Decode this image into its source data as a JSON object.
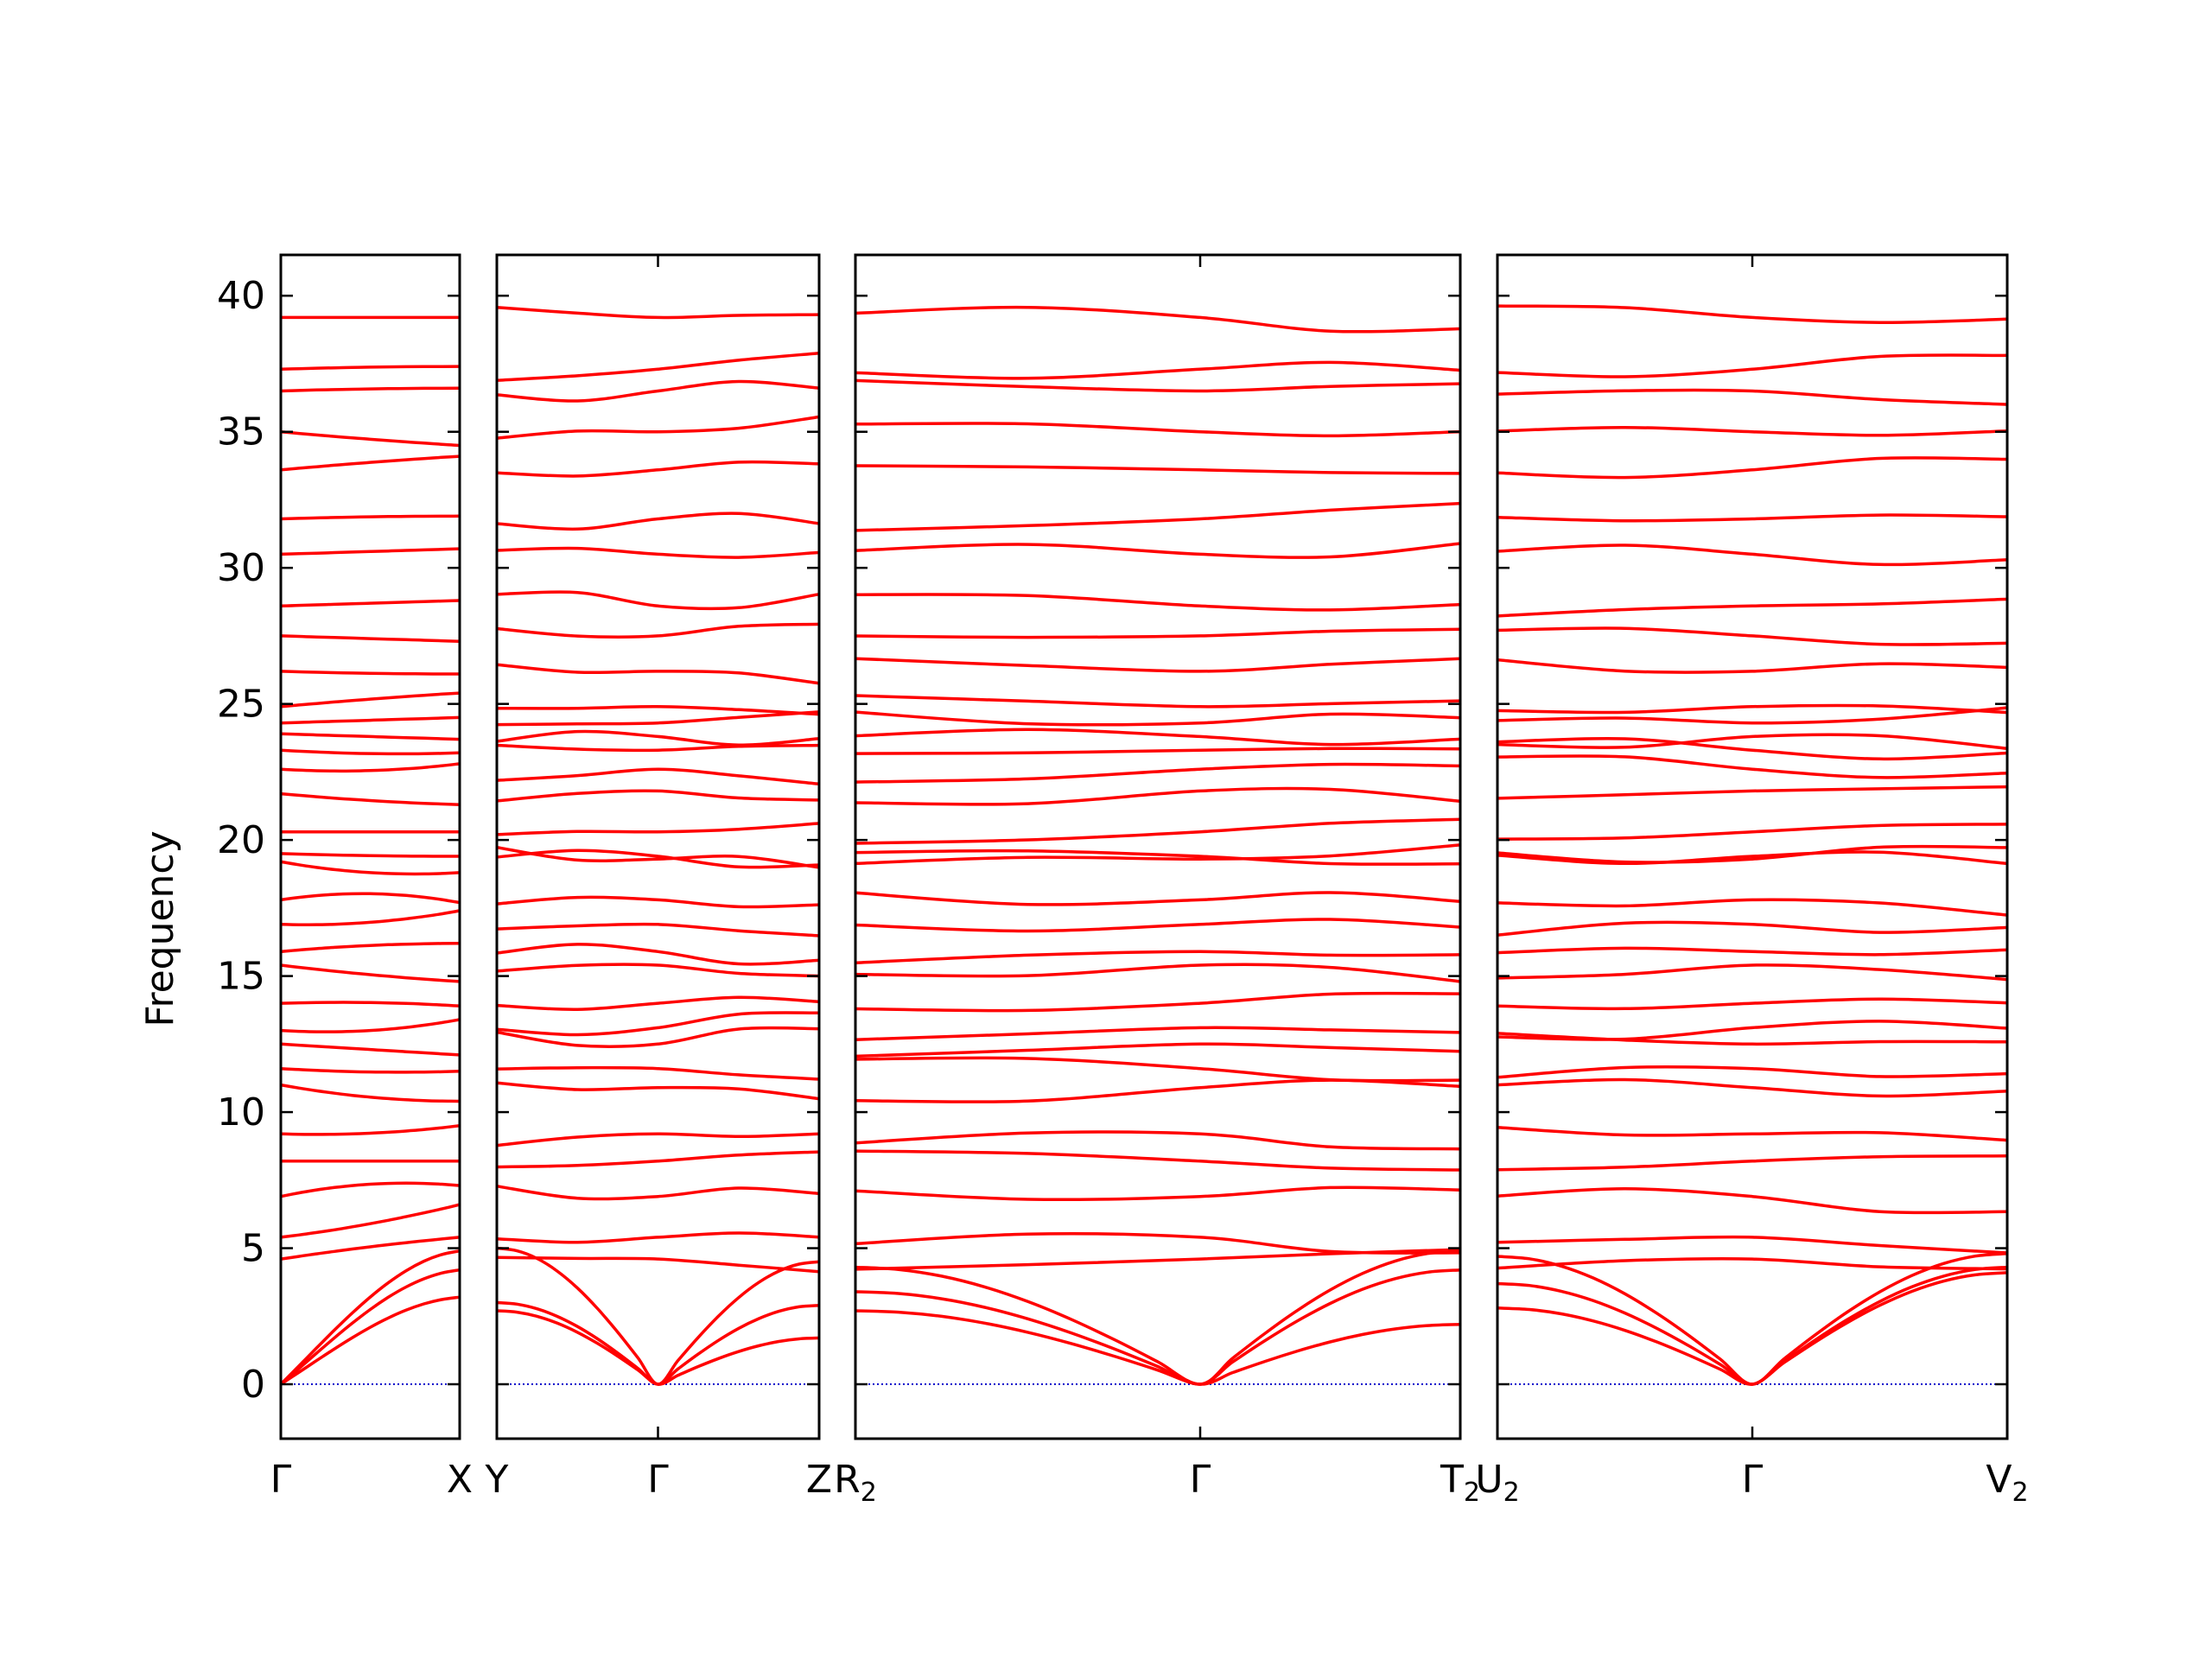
{
  "chart_data": {
    "type": "line",
    "ylabel": "Frequency",
    "ylim": [
      -2,
      41.5
    ],
    "yticks": [
      0,
      5,
      10,
      15,
      20,
      25,
      30,
      35,
      40
    ],
    "band_color": "#ff0000",
    "zero_line_color": "#0000cc",
    "panels": [
      {
        "segments": [
          {
            "k_labels": [
              [
                "Γ",
                ""
              ],
              [
                "X",
                ""
              ]
            ]
          }
        ],
        "gamma_positions": [
          0
        ],
        "endpoint_bands": [
          {
            "start": 0,
            "end": 3.2,
            "mid": 2.2
          },
          {
            "start": 0,
            "end": 4.2,
            "mid": 2.8
          },
          {
            "start": 0,
            "end": 4.9,
            "mid": 4.0
          },
          {
            "start": 4.6,
            "end": 5.4,
            "mid": 5.1
          },
          {
            "start": 5.4,
            "end": 6.6,
            "mid": 5.8
          },
          {
            "start": 6.9,
            "end": 7.3,
            "mid": 7.6
          },
          {
            "start": 8.2,
            "end": 8.2,
            "mid": 8.2
          },
          {
            "start": 9.2,
            "end": 9.5,
            "mid": 9.1
          },
          {
            "start": 11.0,
            "end": 10.4,
            "mid": 10.4
          },
          {
            "start": 11.6,
            "end": 11.5,
            "mid": 11.4
          },
          {
            "start": 12.5,
            "end": 12.1,
            "mid": 12.3
          },
          {
            "start": 13.0,
            "end": 13.4,
            "mid": 12.8
          },
          {
            "start": 14.0,
            "end": 13.9,
            "mid": 14.1
          },
          {
            "start": 15.4,
            "end": 14.8,
            "mid": 15.0
          },
          {
            "start": 15.9,
            "end": 16.2,
            "mid": 16.2
          },
          {
            "start": 16.9,
            "end": 17.4,
            "mid": 16.8
          },
          {
            "start": 17.8,
            "end": 17.7,
            "mid": 18.3
          },
          {
            "start": 19.2,
            "end": 18.8,
            "mid": 18.6
          },
          {
            "start": 19.5,
            "end": 19.4,
            "mid": 19.4
          },
          {
            "start": 20.3,
            "end": 20.3,
            "mid": 20.3
          },
          {
            "start": 21.7,
            "end": 21.3,
            "mid": 21.4
          },
          {
            "start": 22.6,
            "end": 22.8,
            "mid": 22.4
          },
          {
            "start": 23.3,
            "end": 23.2,
            "mid": 23.1
          },
          {
            "start": 23.9,
            "end": 23.7,
            "mid": 23.8
          },
          {
            "start": 24.3,
            "end": 24.5,
            "mid": 24.4
          },
          {
            "start": 24.9,
            "end": 25.4,
            "mid": 25.2
          },
          {
            "start": 26.2,
            "end": 26.1,
            "mid": 26.1
          },
          {
            "start": 27.5,
            "end": 27.3,
            "mid": 27.4
          },
          {
            "start": 28.6,
            "end": 28.8,
            "mid": 28.7
          },
          {
            "start": 30.5,
            "end": 30.7,
            "mid": 30.6
          },
          {
            "start": 31.8,
            "end": 31.9,
            "mid": 31.9
          },
          {
            "start": 33.6,
            "end": 34.1,
            "mid": 33.9
          },
          {
            "start": 35.0,
            "end": 34.5,
            "mid": 34.7
          },
          {
            "start": 36.5,
            "end": 36.6,
            "mid": 36.6
          },
          {
            "start": 37.3,
            "end": 37.4,
            "mid": 37.4
          },
          {
            "start": 39.2,
            "end": 39.2,
            "mid": 39.2
          }
        ]
      },
      {
        "segments": [
          {
            "k_labels": [
              [
                "Y",
                ""
              ],
              [
                "Γ",
                ""
              ],
              [
                "Z",
                ""
              ]
            ]
          }
        ],
        "gamma_positions": [
          0.5
        ],
        "endpoint_bands": []
      },
      {
        "segments": [
          {
            "k_labels": [
              [
                "R",
                "2"
              ],
              [
                "Γ",
                ""
              ],
              [
                "T",
                "2"
              ]
            ]
          }
        ],
        "gamma_positions": [
          0.57
        ],
        "endpoint_bands": []
      },
      {
        "segments": [
          {
            "k_labels": [
              [
                "U",
                "2"
              ],
              [
                "Γ",
                ""
              ],
              [
                "V",
                "2"
              ]
            ]
          }
        ],
        "gamma_positions": [
          0.5
        ],
        "endpoint_bands": []
      }
    ],
    "gamma_frequencies": [
      0,
      0,
      0,
      4.6,
      5.4,
      6.9,
      8.2,
      9.2,
      10.9,
      11.6,
      12.5,
      13.1,
      14.0,
      15.4,
      15.9,
      16.9,
      17.8,
      19.3,
      19.4,
      20.3,
      21.8,
      22.6,
      23.3,
      23.8,
      24.3,
      24.9,
      26.2,
      27.5,
      28.6,
      30.5,
      31.8,
      33.6,
      35.0,
      36.5,
      37.3,
      39.2
    ],
    "acoustic_edge_frequencies": {
      "Y": [
        2.7,
        3.0,
        5.0
      ],
      "Z": [
        1.7,
        2.9,
        4.5
      ],
      "R2": [
        2.7,
        3.4,
        4.3
      ],
      "T2": [
        2.2,
        4.2,
        4.9
      ],
      "U2": [
        2.8,
        3.7,
        4.7
      ],
      "V2": [
        4.1,
        4.3,
        4.8
      ]
    }
  }
}
